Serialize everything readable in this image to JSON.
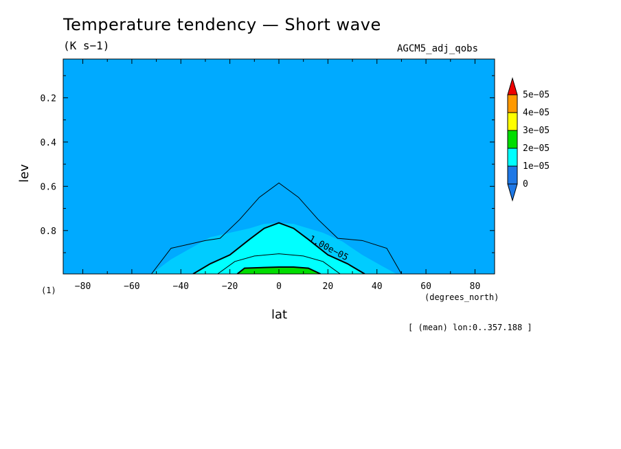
{
  "chart_data": {
    "type": "heatmap",
    "title": "Temperature tendency — Short wave",
    "units": "(K s−1)",
    "run_name": "AGCM5_adj_qobs",
    "xlabel": "lat",
    "x_units": "(degrees_north)",
    "ylabel": "lev",
    "axis_number": "(1)",
    "note": "[ (mean) lon:0..357.188 ]",
    "xlim": [
      -88,
      88
    ],
    "ylim": [
      0.996,
      0.025
    ],
    "y_reversed": true,
    "x_ticks": [
      -80,
      -60,
      -40,
      -20,
      0,
      20,
      40,
      60,
      80
    ],
    "x_tick_labels": [
      "−80",
      "−60",
      "−40",
      "−20",
      "0",
      "20",
      "40",
      "60",
      "80"
    ],
    "y_ticks": [
      0.2,
      0.4,
      0.6,
      0.8
    ],
    "y_tick_labels": [
      "0.2",
      "0.4",
      "0.6",
      "0.8"
    ],
    "contour_label": "1.00e−05",
    "colorbar": {
      "labels": [
        "5e−05",
        "4e−05",
        "3e−05",
        "2e−05",
        "1e−05",
        "0"
      ],
      "levels": [
        0,
        1e-05,
        2e-05,
        3e-05,
        4e-05,
        5e-05
      ],
      "colors": [
        "#1e78e6",
        "#00ffff",
        "#00dd00",
        "#ffff00",
        "#ff9900",
        "#ee0000"
      ],
      "below_color": "#1e78e6",
      "above_color": "#ee0000",
      "field_base_color": "#00aaff"
    },
    "regions": [
      {
        "level": "5e-06 to 1e-05",
        "color": "#00ccff",
        "boundary": [
          [
            -52,
            0.996
          ],
          [
            -44,
            0.93
          ],
          [
            -36,
            0.88
          ],
          [
            -28,
            0.83
          ],
          [
            -20,
            0.81
          ],
          [
            -12,
            0.79
          ],
          [
            -6,
            0.77
          ],
          [
            0,
            0.765
          ],
          [
            6,
            0.77
          ],
          [
            12,
            0.79
          ],
          [
            18,
            0.81
          ],
          [
            26,
            0.85
          ],
          [
            34,
            0.91
          ],
          [
            42,
            0.96
          ],
          [
            48,
            0.996
          ]
        ]
      },
      {
        "level": "1e-05 to 2e-05",
        "color": "#00ffff",
        "boundary": [
          [
            -35,
            0.996
          ],
          [
            -28,
            0.95
          ],
          [
            -20,
            0.91
          ],
          [
            -12,
            0.84
          ],
          [
            -6,
            0.79
          ],
          [
            0,
            0.765
          ],
          [
            6,
            0.79
          ],
          [
            12,
            0.84
          ],
          [
            20,
            0.91
          ],
          [
            28,
            0.95
          ],
          [
            35,
            0.996
          ]
        ]
      },
      {
        "level": "2e-05 to 3e-05",
        "color": "#00dd00",
        "boundary": [
          [
            -17,
            0.996
          ],
          [
            -14,
            0.97
          ],
          [
            -6,
            0.967
          ],
          [
            0,
            0.965
          ],
          [
            6,
            0.965
          ],
          [
            12,
            0.97
          ],
          [
            17,
            0.996
          ]
        ]
      }
    ],
    "contours": [
      {
        "value": "5e-06",
        "width": 1,
        "points": [
          [
            -52,
            0.996
          ],
          [
            -44,
            0.88
          ],
          [
            -30,
            0.845
          ],
          [
            -24,
            0.835
          ],
          [
            -16,
            0.75
          ],
          [
            -8,
            0.65
          ],
          [
            0,
            0.585
          ],
          [
            8,
            0.65
          ],
          [
            16,
            0.75
          ],
          [
            24,
            0.835
          ],
          [
            34,
            0.845
          ],
          [
            44,
            0.88
          ],
          [
            50,
            0.996
          ]
        ]
      },
      {
        "value": "1e-05",
        "width": 2,
        "points": [
          [
            -35,
            0.996
          ],
          [
            -28,
            0.95
          ],
          [
            -20,
            0.91
          ],
          [
            -12,
            0.84
          ],
          [
            -6,
            0.79
          ],
          [
            0,
            0.765
          ],
          [
            6,
            0.79
          ],
          [
            12,
            0.84
          ],
          [
            20,
            0.91
          ],
          [
            28,
            0.95
          ],
          [
            35,
            0.996
          ]
        ]
      },
      {
        "value": "1.5e-05",
        "width": 1,
        "points": [
          [
            -25,
            0.996
          ],
          [
            -18,
            0.94
          ],
          [
            -10,
            0.915
          ],
          [
            0,
            0.905
          ],
          [
            10,
            0.915
          ],
          [
            18,
            0.94
          ],
          [
            25,
            0.996
          ]
        ]
      },
      {
        "value": "2e-05",
        "width": 2,
        "points": [
          [
            -17,
            0.996
          ],
          [
            -14,
            0.97
          ],
          [
            -6,
            0.967
          ],
          [
            0,
            0.965
          ],
          [
            6,
            0.965
          ],
          [
            12,
            0.97
          ],
          [
            17,
            0.996
          ]
        ]
      }
    ]
  }
}
